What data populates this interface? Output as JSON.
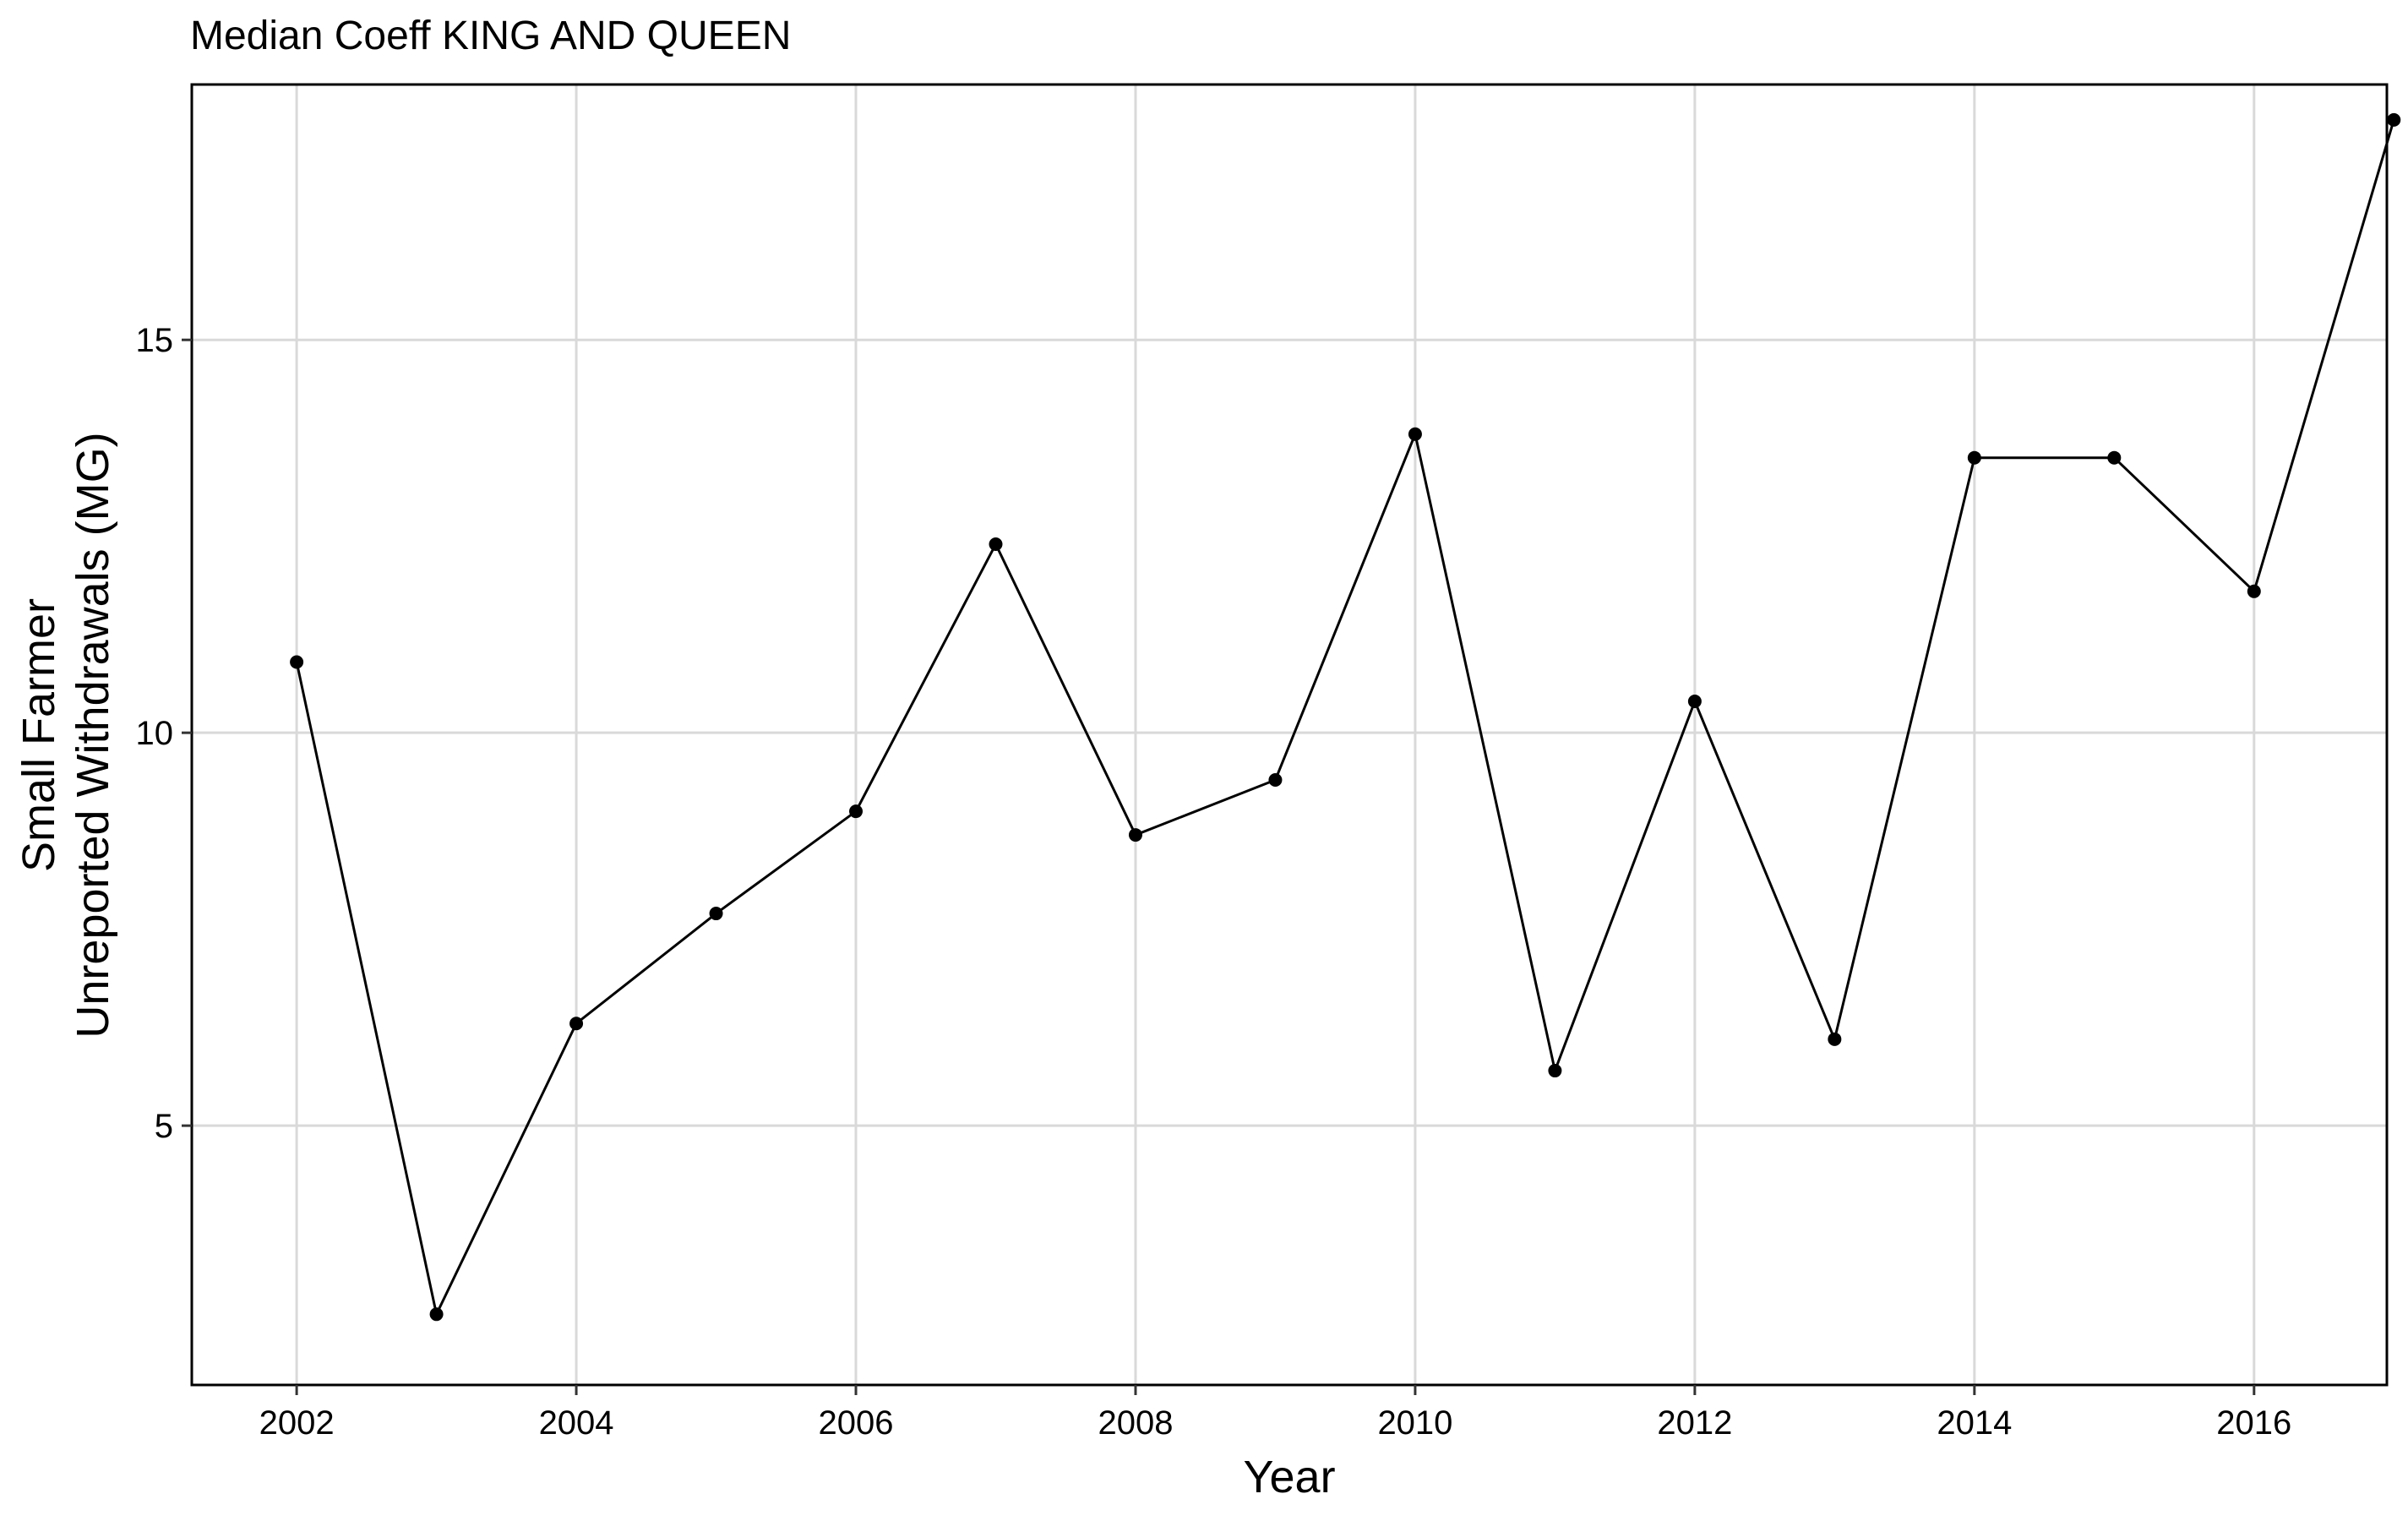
{
  "chart_data": {
    "type": "line",
    "title": "Median Coeff KING AND QUEEN",
    "xlabel": "Year",
    "ylabel_lines": [
      "Small Farmer",
      "Unreported Withdrawals (MG)"
    ],
    "xlim": [
      2001.25,
      2016.95
    ],
    "ylim": [
      1.7,
      18.25
    ],
    "x_ticks": [
      2002,
      2004,
      2006,
      2008,
      2010,
      2012,
      2014,
      2016
    ],
    "y_ticks": [
      5,
      10,
      15
    ],
    "grid": true,
    "legend": "none",
    "colors": {
      "line": "#000000",
      "grid": "#d9d9d9",
      "frame": "#000000"
    },
    "series": [
      {
        "x": [
          2002,
          2003,
          2004,
          2005,
          2006,
          2007,
          2008,
          2009,
          2010,
          2011,
          2012,
          2013,
          2014,
          2015,
          2016,
          2017
        ],
        "y": [
          10.9,
          2.6,
          6.3,
          7.7,
          9.0,
          12.4,
          8.7,
          9.4,
          13.8,
          5.7,
          10.4,
          6.1,
          13.5,
          13.5,
          11.8,
          17.8
        ]
      }
    ]
  }
}
